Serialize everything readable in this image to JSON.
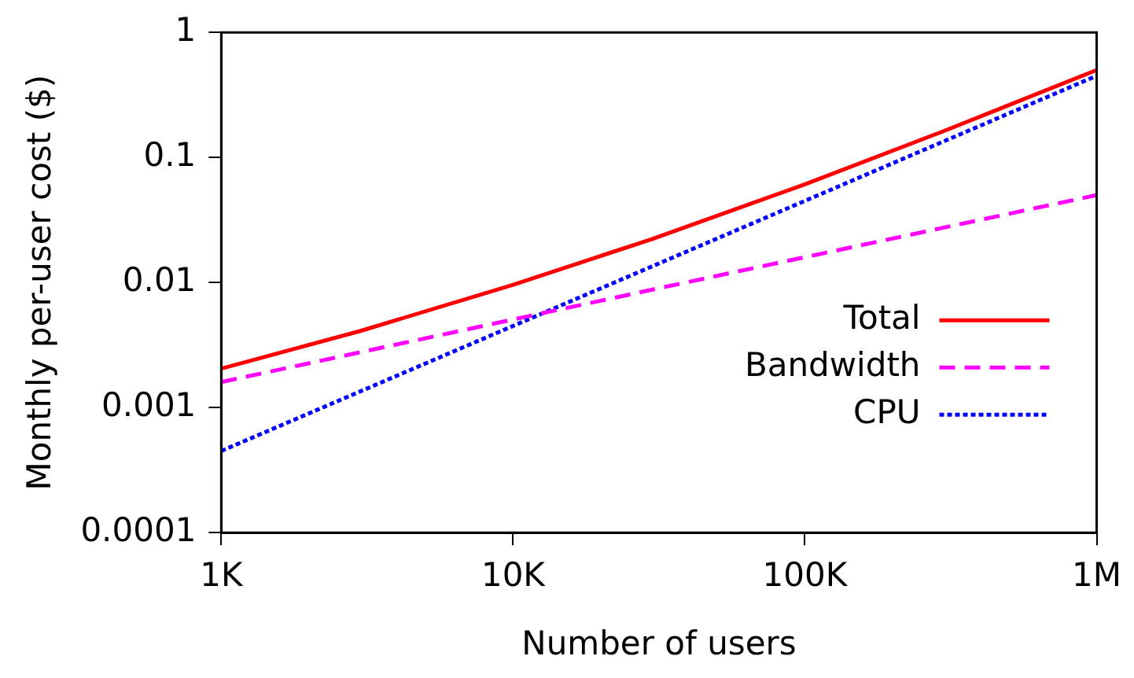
{
  "chart_data": {
    "type": "line",
    "xlabel": "Number of users",
    "ylabel": "Monthly per-user cost ($)",
    "log": "xy",
    "grid": false,
    "legend": "bottom right",
    "marker": "none",
    "xlim": [
      1000,
      1000000
    ],
    "xticks": [
      {
        "value": 1000,
        "label": "1K"
      },
      {
        "value": 10000,
        "label": "10K"
      },
      {
        "value": 100000,
        "label": "100K"
      },
      {
        "value": 1000000,
        "label": "1M"
      }
    ],
    "ylim": [
      0.0001,
      1
    ],
    "yticks": [
      0.0001,
      0.001,
      0.01,
      0.1,
      1
    ],
    "series": [
      {
        "name": "Total",
        "color": "#ff0000",
        "line_style": "solid",
        "x": [
          1000,
          3000,
          10000,
          30000,
          100000,
          300000,
          1000000
        ],
        "values": [
          0.00205,
          0.0041,
          0.0096,
          0.0223,
          0.061,
          0.163,
          0.5
        ]
      },
      {
        "name": "Bandwidth",
        "color": "#ff00ff",
        "line_style": "dashed",
        "x": [
          1000,
          31600,
          1000000
        ],
        "values": [
          0.0016,
          0.009,
          0.05
        ]
      },
      {
        "name": "CPU",
        "color": "#0000ff",
        "line_style": "dotted",
        "x": [
          1000,
          31600,
          1000000
        ],
        "values": [
          0.00045,
          0.0142,
          0.45
        ]
      }
    ]
  }
}
